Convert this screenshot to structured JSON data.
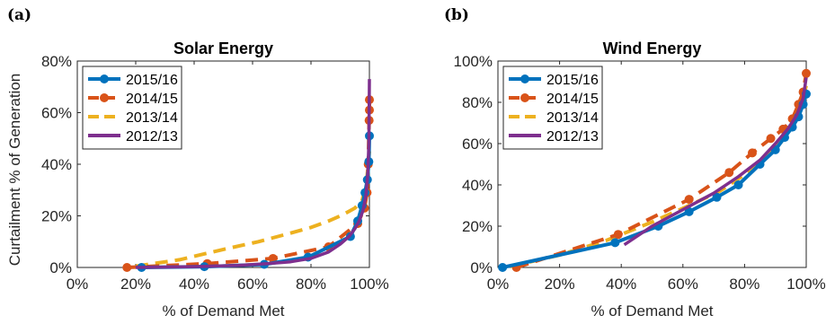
{
  "chart_data": [
    {
      "type": "line",
      "panel_label": "(a)",
      "title": "Solar Energy",
      "xlabel": "% of Demand Met",
      "ylabel": "Curtailment % of Generation",
      "xlim": [
        0,
        100
      ],
      "ylim": [
        0,
        80
      ],
      "xticks": [
        "0%",
        "20%",
        "40%",
        "60%",
        "80%",
        "100%"
      ],
      "yticks": [
        "0%",
        "20%",
        "40%",
        "60%",
        "80%"
      ],
      "xtick_values": [
        0,
        20,
        40,
        60,
        80,
        100
      ],
      "ytick_values": [
        0,
        20,
        40,
        60,
        80
      ],
      "legend_position": "top-left",
      "series": [
        {
          "name": "2015/16",
          "color": "#0072BD",
          "style": "solid-markers",
          "x": [
            22,
            43.5,
            64,
            79,
            93.5,
            96,
            97.5,
            98.5,
            99.3,
            99.8,
            100
          ],
          "y": [
            0,
            0.3,
            1.2,
            4,
            12,
            18,
            24,
            29,
            34,
            41,
            51
          ]
        },
        {
          "name": "2014/15",
          "color": "#D95319",
          "style": "dashed-markers",
          "x": [
            17,
            44.5,
            67,
            86,
            96,
            98.3,
            99.2,
            99.6,
            99.9,
            100,
            100
          ],
          "y": [
            0,
            1.5,
            3.5,
            8,
            17,
            23,
            29,
            40,
            57,
            61,
            65
          ]
        },
        {
          "name": "2013/14",
          "color": "#EDB120",
          "style": "dashed",
          "x": [
            20,
            35,
            50,
            62,
            72,
            80,
            86,
            91,
            95,
            97.5,
            99,
            100
          ],
          "y": [
            0.5,
            3,
            7,
            10,
            13,
            15.5,
            18,
            20.5,
            23,
            26,
            33,
            45
          ]
        },
        {
          "name": "2012/13",
          "color": "#7E2F8E",
          "style": "solid",
          "x": [
            20,
            40,
            55,
            65,
            73,
            80,
            86,
            90,
            93,
            95,
            96.5,
            97.8,
            98.8,
            99.4,
            99.8,
            100
          ],
          "y": [
            0,
            0.3,
            0.8,
            1.5,
            2.2,
            3.5,
            6,
            9,
            12,
            15,
            18,
            22,
            28,
            36,
            48,
            73
          ]
        }
      ]
    },
    {
      "type": "line",
      "panel_label": "(b)",
      "title": "Wind Energy",
      "xlabel": "% of Demand Met",
      "ylabel": "",
      "xlim": [
        0,
        100
      ],
      "ylim": [
        0,
        100
      ],
      "xticks": [
        "0%",
        "20%",
        "40%",
        "60%",
        "80%",
        "100%"
      ],
      "yticks": [
        "0%",
        "20%",
        "40%",
        "60%",
        "80%",
        "100%"
      ],
      "xtick_values": [
        0,
        20,
        40,
        60,
        80,
        100
      ],
      "ytick_values": [
        0,
        20,
        40,
        60,
        80,
        100
      ],
      "legend_position": "top-left",
      "series": [
        {
          "name": "2015/16",
          "color": "#0072BD",
          "style": "solid-markers",
          "x": [
            1.5,
            38,
            52,
            62,
            71,
            78,
            85,
            90,
            93,
            95.5,
            97.5,
            99,
            100
          ],
          "y": [
            0,
            12,
            20,
            27,
            34,
            40,
            50,
            57,
            63,
            68,
            73,
            79,
            84
          ]
        },
        {
          "name": "2014/15",
          "color": "#D95319",
          "style": "dashed-markers",
          "x": [
            6,
            39,
            62,
            75,
            82.5,
            88.5,
            92.5,
            95.5,
            97.5,
            99,
            100
          ],
          "y": [
            0,
            16,
            33,
            46,
            55.5,
            62.5,
            67,
            72,
            79,
            85,
            94
          ]
        },
        {
          "name": "2013/14",
          "color": "#EDB120",
          "style": "dashed",
          "x": [
            4,
            20,
            35,
            50,
            62,
            72,
            80,
            87,
            92,
            95.5,
            98,
            100
          ],
          "y": [
            0.5,
            6,
            13,
            22,
            30,
            37,
            45,
            53,
            61,
            69,
            77,
            88
          ]
        },
        {
          "name": "2012/13",
          "color": "#7E2F8E",
          "style": "solid",
          "x": [
            41,
            50,
            60,
            70,
            78,
            85,
            90,
            94,
            97,
            99,
            100
          ],
          "y": [
            11,
            20,
            28,
            36,
            44,
            52,
            60,
            67,
            74,
            82,
            92
          ]
        }
      ]
    }
  ]
}
